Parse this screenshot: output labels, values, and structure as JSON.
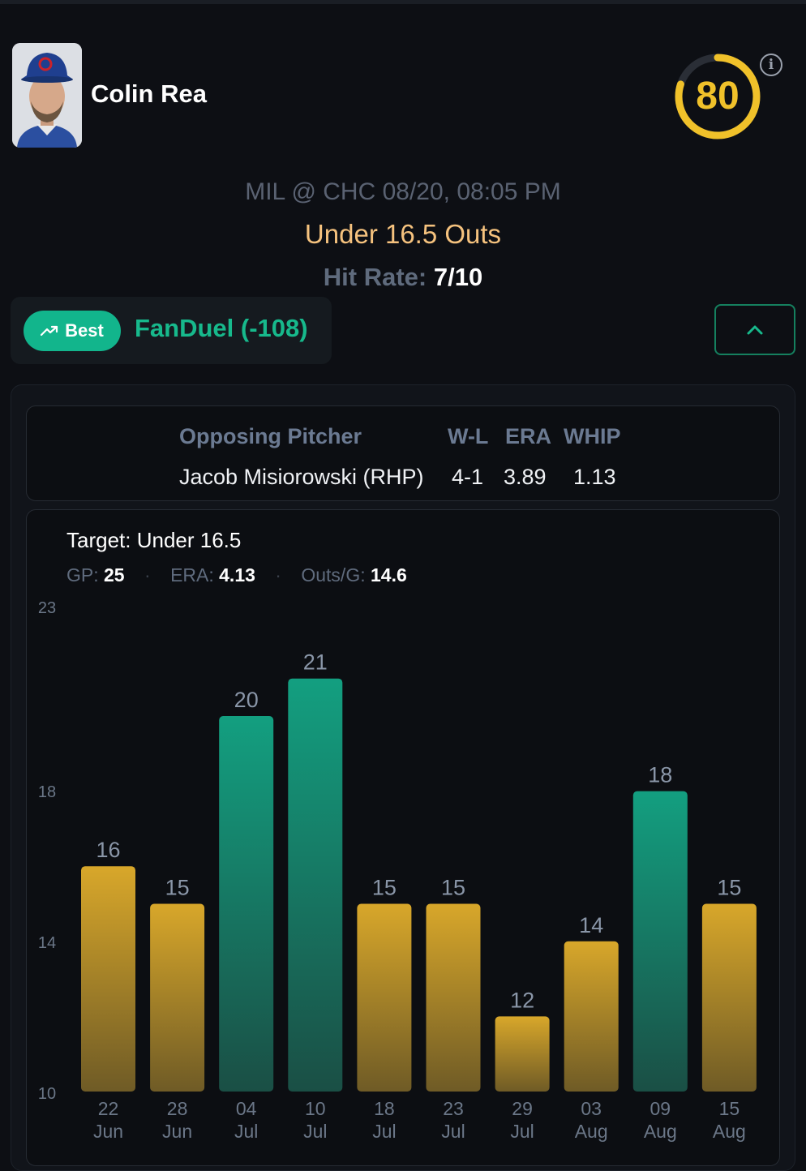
{
  "player": {
    "name": "Colin Rea"
  },
  "score": {
    "value": "80",
    "fraction": 0.8,
    "color": "#f0c12a"
  },
  "game": {
    "matchup": "MIL @ CHC 08/20, 08:05 PM"
  },
  "prop": {
    "line": "Under 16.5 Outs"
  },
  "hit_rate": {
    "label": "Hit Rate:",
    "value": "7/10"
  },
  "book": {
    "best_label": "Best",
    "name": "FanDuel (-108)"
  },
  "opposing": {
    "headers": {
      "pitcher": "Opposing Pitcher",
      "wl": "W-L",
      "era": "ERA",
      "whip": "WHIP"
    },
    "pitcher": "Jacob Misiorowski (RHP)",
    "wl": "4-1",
    "era": "3.89",
    "whip": "1.13"
  },
  "chart_header": {
    "target": "Target: Under 16.5",
    "stats": [
      {
        "label": "GP:",
        "value": "25"
      },
      {
        "label": "ERA:",
        "value": "4.13"
      },
      {
        "label": "Outs/G:",
        "value": "14.6"
      }
    ]
  },
  "colors": {
    "over": "#149a7c",
    "under": "#cf9f2a",
    "accent": "#12b58c",
    "score": "#f0c12a"
  },
  "chart_data": {
    "type": "bar",
    "categories": [
      [
        "22",
        "Jun"
      ],
      [
        "28",
        "Jun"
      ],
      [
        "04",
        "Jul"
      ],
      [
        "10",
        "Jul"
      ],
      [
        "18",
        "Jul"
      ],
      [
        "23",
        "Jul"
      ],
      [
        "29",
        "Jul"
      ],
      [
        "03",
        "Aug"
      ],
      [
        "09",
        "Aug"
      ],
      [
        "15",
        "Aug"
      ]
    ],
    "values": [
      16,
      15,
      20,
      21,
      15,
      15,
      12,
      14,
      18,
      15
    ],
    "target": 16.5,
    "yticks": [
      23,
      18,
      14,
      10
    ],
    "ylim": [
      10,
      23
    ]
  }
}
